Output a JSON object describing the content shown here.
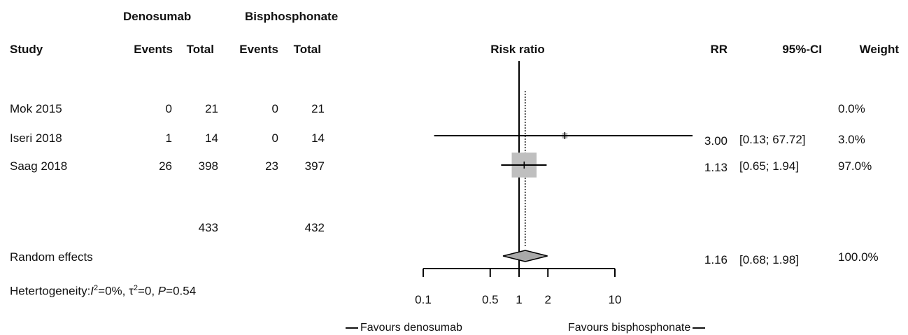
{
  "chart_data": {
    "type": "forest",
    "x_scale": "log",
    "xlim": [
      0.1,
      10
    ],
    "x_ticks": [
      "0.1",
      "0.5",
      "1",
      "2",
      "10"
    ],
    "x_tick_values": [
      0.1,
      0.5,
      1,
      2,
      10
    ],
    "group_headers": {
      "treatment": "Denosumab",
      "control": "Bisphosphonate"
    },
    "columns": {
      "study": "Study",
      "events_treatment": "Events",
      "total_treatment": "Total",
      "events_control": "Events",
      "total_control": "Total",
      "plot": "Risk ratio",
      "rr": "RR",
      "ci": "95%-CI",
      "weight": "Weight"
    },
    "studies": [
      {
        "name": "Mok 2015",
        "events_t": "0",
        "total_t": "21",
        "events_c": "0",
        "total_c": "21",
        "rr": "",
        "ci": "",
        "weight": "0.0%",
        "rr_value": null,
        "lower": null,
        "upper": null,
        "weight_value": 0.0
      },
      {
        "name": "Iseri 2018",
        "events_t": "1",
        "total_t": "14",
        "events_c": "0",
        "total_c": "14",
        "rr": "3.00",
        "ci": "[0.13; 67.72]",
        "weight": "3.0%",
        "rr_value": 3.0,
        "lower": 0.13,
        "upper": 67.72,
        "weight_value": 3.0
      },
      {
        "name": "Saag 2018",
        "events_t": "26",
        "total_t": "398",
        "events_c": "23",
        "total_c": "397",
        "rr": "1.13",
        "ci": "[0.65; 1.94]",
        "weight": "97.0%",
        "rr_value": 1.13,
        "lower": 0.65,
        "upper": 1.94,
        "weight_value": 97.0
      }
    ],
    "totals": {
      "total_t": "433",
      "total_c": "432"
    },
    "pooled": {
      "label": "Random effects",
      "rr": "1.16",
      "ci": "[0.68; 1.98]",
      "weight": "100.0%",
      "rr_value": 1.16,
      "lower": 0.68,
      "upper": 1.98
    },
    "heterogeneity": {
      "prefix": "Hetertogeneity:",
      "i2": "I",
      "i2_sup": "2",
      "i2_value": "=0%, ",
      "tau": "τ",
      "tau_sup": "2",
      "tau_value": "=0, ",
      "p": "P",
      "p_value": "=0.54"
    },
    "favours": {
      "left": "Favours denosumab",
      "right": "Favours bisphosphonate"
    }
  }
}
